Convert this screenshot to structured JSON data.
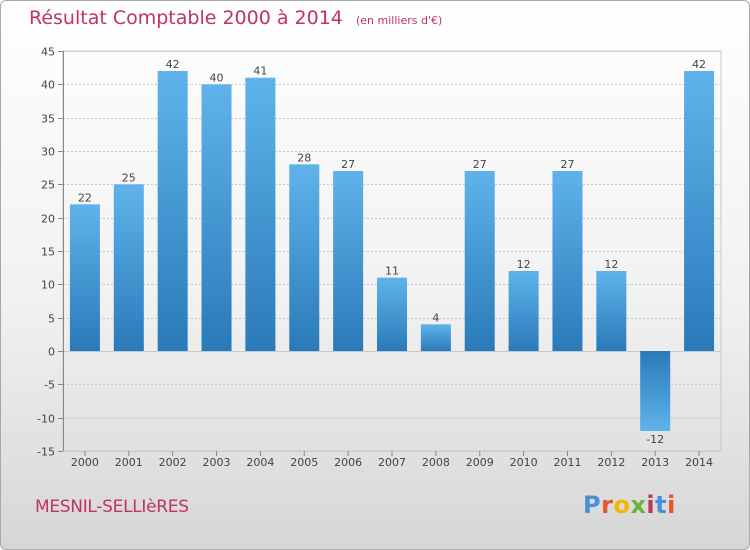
{
  "header": {
    "title": "Résultat Comptable 2000 à 2014",
    "subtitle": "(en milliers d'€)"
  },
  "footer": {
    "commune": "MESNIL-SELLIèRES",
    "logo_text": "Proxiti"
  },
  "colors": {
    "title": "#c0345e",
    "bar_light": "#5aaee6",
    "bar_dark": "#2a7ab9",
    "logo": [
      "#4a90d9",
      "#e8542b",
      "#f2b705",
      "#6bb43b",
      "#c0345e",
      "#4a90d9",
      "#e8542b"
    ]
  },
  "chart_data": {
    "type": "bar",
    "title": "Résultat Comptable 2000 à 2014",
    "subtitle": "(en milliers d'€)",
    "xlabel": "",
    "ylabel": "",
    "categories": [
      "2000",
      "2001",
      "2002",
      "2003",
      "2004",
      "2005",
      "2006",
      "2007",
      "2008",
      "2009",
      "2010",
      "2011",
      "2012",
      "2013",
      "2014"
    ],
    "values": [
      22,
      25,
      42,
      40,
      41,
      28,
      27,
      11,
      4,
      27,
      12,
      27,
      12,
      -12,
      42
    ],
    "ylim": [
      -15,
      45
    ],
    "yticks": [
      -15,
      -10,
      -5,
      0,
      5,
      10,
      15,
      20,
      25,
      30,
      35,
      40,
      45
    ],
    "grid": true
  }
}
